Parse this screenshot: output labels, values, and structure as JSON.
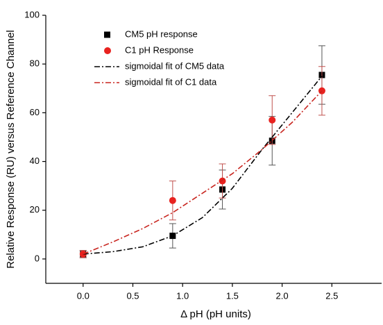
{
  "chart_data": {
    "type": "scatter",
    "xlabel": "Δ pH (pH units)",
    "ylabel": "Relative Response (RU) versus Reference Channel",
    "xlim": [
      -0.375,
      3.0
    ],
    "ylim": [
      -10,
      100
    ],
    "xticks": [
      {
        "value": 0,
        "label": "0.0"
      },
      {
        "value": 0.5,
        "label": "0.5"
      },
      {
        "value": 1,
        "label": "1.0"
      },
      {
        "value": 1.5,
        "label": "1.5"
      },
      {
        "value": 2,
        "label": "2.0"
      },
      {
        "value": 2.5,
        "label": "2.5"
      }
    ],
    "yticks": [
      0,
      20,
      40,
      60,
      80,
      100
    ],
    "legend": "upper-left",
    "series": [
      {
        "name": "CM5 pH response",
        "kind": "points",
        "marker": "square",
        "color": "#000000",
        "x": [
          0,
          0.9,
          1.4,
          1.9,
          2.4
        ],
        "values": [
          2,
          9.5,
          28.5,
          48.5,
          75.5
        ],
        "errors": [
          1.5,
          5,
          8,
          10,
          12
        ]
      },
      {
        "name": "C1 pH Response",
        "kind": "points",
        "marker": "circle",
        "color": "#e8221f",
        "x": [
          0,
          0.9,
          1.4,
          1.9,
          2.4
        ],
        "values": [
          2,
          24,
          32,
          57,
          69
        ],
        "errors": [
          1.5,
          8,
          7,
          10,
          10
        ]
      },
      {
        "name": "sigmoidal fit of CM5 data",
        "kind": "line",
        "color": "#000000",
        "x": [
          0,
          0.3,
          0.6,
          0.9,
          1.2,
          1.5,
          1.8,
          2.1,
          2.4
        ],
        "values": [
          2,
          3,
          5,
          9.5,
          17,
          29,
          45,
          60,
          75
        ]
      },
      {
        "name": "sigmoidal fit of C1 data",
        "kind": "line",
        "color": "#c8251f",
        "x": [
          0,
          0.3,
          0.6,
          0.9,
          1.2,
          1.5,
          1.8,
          2.1,
          2.4
        ],
        "values": [
          2,
          7,
          12.5,
          19,
          27,
          35,
          45,
          56,
          69
        ]
      }
    ]
  }
}
